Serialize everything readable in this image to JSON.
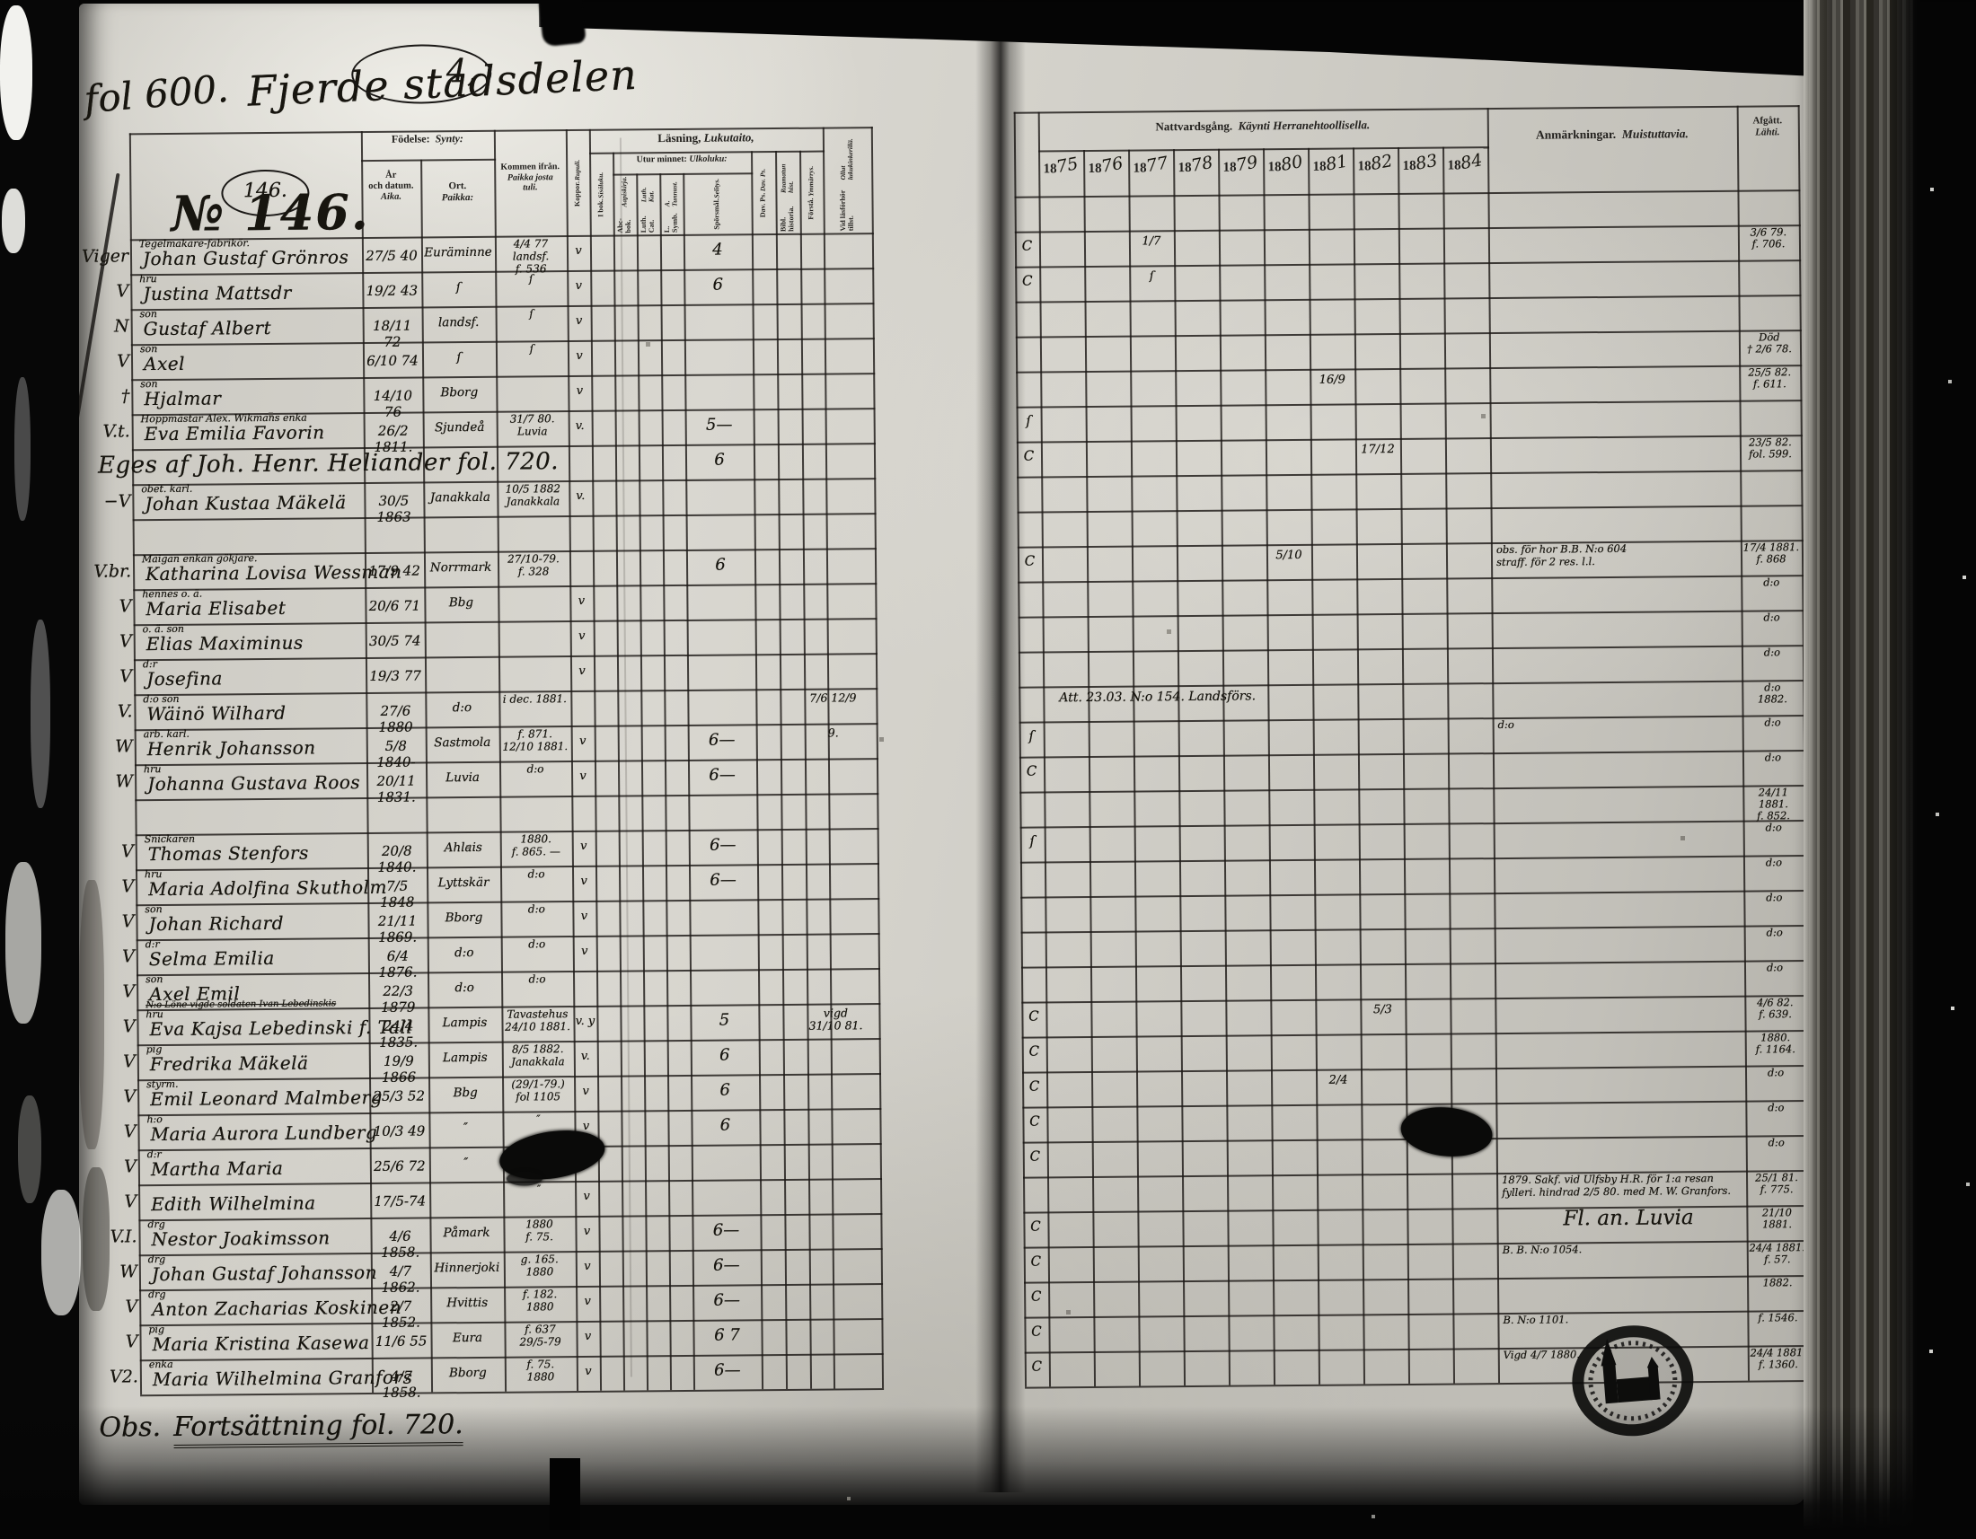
{
  "page": {
    "folio": "fol 600.",
    "district": "Fjerde stadsdelen",
    "page_mark": "4,",
    "margin_no": "146.",
    "household_no": "№ 146.",
    "cont_prefix": "Obs.",
    "continuation": "Fortsättning fol. 720.",
    "stamp_motif": "parish church seal"
  },
  "left_header": {
    "birth": {
      "sv": "Födelse:",
      "fi": "Synty:"
    },
    "birth_date": {
      "sv": "År\noch datum.",
      "fi": "Aika."
    },
    "birth_place": {
      "sv": "Ort.",
      "fi": "Paikka:"
    },
    "arrived": {
      "sv": "Kommen ifrån.",
      "fi": "Paikka josta\ntuli."
    },
    "reading": {
      "sv": "Läsning,",
      "fi": "Lukutaito,"
    },
    "memory": {
      "sv": "Utur minnet:",
      "fi": "Ulkoluku:"
    },
    "cols": [
      {
        "sv": "Koppor.",
        "fi": "Rupuli."
      },
      {
        "sv": "I bok.",
        "fi": "Sisäluku."
      },
      {
        "sv": "Abc-bok.",
        "fi": "Aapiskirja."
      },
      {
        "sv": "Luth. Cat.",
        "fi": "Luth. Kat."
      },
      {
        "sv": "L. Symb.",
        "fi": "A. Tunnust."
      },
      {
        "sv": "Spörsmål.",
        "fi": "Selitys."
      },
      {
        "sv": "Dav. Ps.",
        "fi": "Dav. Ps."
      },
      {
        "sv": "Bibl. historia.",
        "fi": "Raamatun hist."
      },
      {
        "sv": "Förstå.",
        "fi": "Ymmärrys."
      },
      {
        "sv": "Vid läsförhör tillst.",
        "fi": "Ollut lukukinkerillä."
      }
    ]
  },
  "right_header": {
    "communion": {
      "sv": "Nattvardsgång.",
      "fi": "Käynti Herranehtoollisella."
    },
    "year_prefix": "18",
    "years": [
      "75",
      "76",
      "77",
      "78",
      "79",
      "80",
      "81",
      "82",
      "83",
      "84"
    ],
    "remarks": {
      "sv": "Anmärkningar.",
      "fi": "Muistuttavia."
    },
    "departed": {
      "sv": "Afgått.",
      "fi": "Lähti."
    }
  },
  "rows": [
    {
      "m": "Viger",
      "occ": "Tegelmakare-fabrikör.",
      "name": "Johan Gustaf Grönros",
      "d": "27/5 40",
      "ort": "Euräminne",
      "kom": "4/4 77 landsf.\nf. 536",
      "kop": "v",
      "sp": "4",
      "lead": "C",
      "yr": {
        "77": "1/7"
      },
      "af": "3/6 79.\nf. 706."
    },
    {
      "m": "V",
      "occ": "hru",
      "name": "Justina Mattsdr",
      "d": "19/2 43",
      "ort": "ſ",
      "kom": "ſ",
      "kop": "v",
      "sp": "6",
      "lead": "C",
      "yr": {
        "77": "ſ"
      }
    },
    {
      "m": "N",
      "occ": "son",
      "name": "Gustaf Albert",
      "d": "18/11 72",
      "ort": "landsf.",
      "kom": "ſ",
      "kop": "v"
    },
    {
      "m": "V",
      "occ": "son",
      "name": "Axel",
      "d": "6/10 74",
      "ort": "ſ",
      "kom": "ſ",
      "kop": "v",
      "af": "Död\n† 2/6 78."
    },
    {
      "m": "†",
      "occ": "son",
      "name": "Hjalmar",
      "d": "14/10 76",
      "ort": "Bborg",
      "kop": "v",
      "yr": {
        "81": "16/9"
      },
      "af": "25/5 82.\nf. 611."
    },
    {
      "m": "V.t.",
      "occ": "Hoppmästar Alex. Wikmans enka",
      "name": "Eva Emilia Favorin",
      "d": "26/2 1811.",
      "ort": "Sjundeå",
      "kom": "31/7 80.\nLuvia",
      "kop": "v.",
      "sp": "5—",
      "lead": "ſ"
    },
    {
      "name": "Eges af Joh. Henr. Heliander   fol. 720.",
      "wide": true,
      "sp": "6",
      "lead": "C",
      "yr": {
        "82": "17/12"
      },
      "af": "23/5 82.\nfol. 599."
    },
    {
      "m": "−V",
      "occ": "obet. karl.",
      "name": "Johan Kustaa Mäkelä",
      "d": "30/5 1863",
      "ort": "Janakkala",
      "kom": "10/5 1882\nJanakkala",
      "kop": "v."
    },
    {},
    {
      "m": "V.br.",
      "occ": "Maigan enkan gökjare.",
      "name": "Katharina Lovisa Wessman",
      "d": "17/9 42",
      "ort": "Norrmark",
      "kom": "27/10-79.\nf. 328",
      "sp": "6",
      "lead": "C",
      "yr": {
        "80": "5/10"
      },
      "note": "obs. för hor B.B. N:o 604\nstraff. för 2 res. l.l.",
      "af": "17/4 1881.\nf. 868"
    },
    {
      "m": "V",
      "occ": "hennes o. ä.",
      "name": "Maria Elisabet",
      "d": "20/6 71",
      "ort": "Bbg",
      "kop": "v",
      "af": "d:o"
    },
    {
      "m": "V",
      "occ": "o. ä. son",
      "name": "Elias Maximinus",
      "d": "30/5 74",
      "kop": "v",
      "af": "d:o"
    },
    {
      "m": "V",
      "occ": "d:r",
      "name": "Josefina",
      "d": "19/3 77",
      "kop": "v",
      "af": "d:o"
    },
    {
      "m": "V.",
      "occ": "d:o son",
      "name": "Wäinö Wilhard",
      "d": "27/6 1880",
      "ort": "d:o",
      "kom": "i dec. 1881.",
      "vh": "7/6   12/9",
      "noteWide": "Att. 23.03. N:o 154.        Landsförs.",
      "af": "d:o\n1882."
    },
    {
      "m": "W",
      "occ": "arb. karl.",
      "name": "Henrik Johansson",
      "d": "5/8 1840-",
      "ort": "Sastmola",
      "kom": "f. 871.\n12/10 1881.",
      "kop": "v",
      "sp": "6—",
      "vh": "9.",
      "lead": "ſ",
      "note": "d:o",
      "af": "d:o"
    },
    {
      "m": "W",
      "occ": "hru",
      "name": "Johanna Gustava Roos",
      "d": "20/11 1831.",
      "ort": "Luvia",
      "kom": "d:o",
      "kop": "v",
      "sp": "6—",
      "lead": "C",
      "af": "d:o"
    },
    {
      "af": "24/11 1881.\nf. 852."
    },
    {
      "m": "V",
      "occ": "Snickaren",
      "name": "Thomas Stenfors",
      "d": "20/8 1840.",
      "ort": "Ahlais",
      "kom": "1880.\nf. 865. —",
      "kop": "v",
      "sp": "6—",
      "lead": "ſ",
      "af": "d:o"
    },
    {
      "m": "V",
      "occ": "hru",
      "name": "Maria Adolfina Skutholm",
      "d": "7/5 1848",
      "ort": "Lyttskär",
      "kom": "d:o",
      "kop": "v",
      "sp": "6—",
      "af": "d:o"
    },
    {
      "m": "V",
      "occ": "son",
      "name": "Johan Richard",
      "d": "21/11 1869.",
      "ort": "Bborg",
      "kom": "d:o",
      "kop": "v",
      "af": "d:o"
    },
    {
      "m": "V",
      "occ": "d:r",
      "name": "Selma Emilia",
      "d": "6/4 1876.",
      "ort": "d:o",
      "kom": "d:o",
      "kop": "v",
      "af": "d:o"
    },
    {
      "m": "V",
      "occ": "son",
      "name": "Axel Emil",
      "d": "22/3 1879",
      "ort": "d:o",
      "kom": "d:o",
      "af": "d:o"
    },
    {
      "m": "V",
      "occ": "hru",
      "struck": "N:o Löne vigde soldaten Ivan Lebedinskis",
      "name": "Eva Kajsa Lebedinski f. Tall",
      "d": "24/4 1835.",
      "ort": "Lampis",
      "kom": "Tavastehus\n24/10 1881.",
      "kop": "v. y",
      "sp": "5",
      "vh": "vigd\n31/10 81.",
      "lead": "C",
      "yr": {
        "82": "5/3"
      },
      "af": "4/6 82.\nf. 639."
    },
    {
      "m": "V",
      "occ": "pig",
      "name": "Fredrika Mäkelä",
      "d": "19/9 1866",
      "ort": "Lampis",
      "kom": "8/5 1882.\nJanakkala",
      "kop": "v.",
      "sp": "6",
      "lead": "C",
      "af": "1880.\nf. 1164."
    },
    {
      "m": "V",
      "occ": "styrm.",
      "name": "Emil Leonard Malmberg",
      "d": "25/3 52",
      "ort": "Bbg",
      "kom": "(29/1-79.)\nfol 1105",
      "kop": "v",
      "sp": "6",
      "lead": "C",
      "yr": {
        "81": "2/4"
      },
      "af": "d:o"
    },
    {
      "m": "V",
      "occ": "h:o",
      "name": "Maria Aurora Lundberg",
      "d": "10/3 49",
      "ort": "″",
      "kom": "″",
      "kop": "v",
      "sp": "6",
      "lead": "C",
      "af": "d:o"
    },
    {
      "m": "V",
      "occ": "d:r",
      "name": "Martha Maria",
      "d": "25/6 72",
      "ort": "″",
      "kom": "″",
      "kop": "v",
      "lead": "C",
      "af": "d:o"
    },
    {
      "m": "V",
      "name": "Edith Wilhelmina",
      "d": "17/5-74",
      "kom": "″",
      "kop": "v",
      "note": "1879. Sakf. vid Ulfsby H.R. för 1:a resan\nfylleri. hindrad 2/5 80. med M. W. Granfors.",
      "af": "25/1 81.\nf. 775."
    },
    {
      "m": "V.I.",
      "occ": "drg",
      "name": "Nestor Joakimsson",
      "d": "4/6 1858.",
      "ort": "Påmark",
      "kom": "1880\nf. 75.",
      "kop": "v",
      "sp": "6—",
      "lead": "C",
      "noteBig": "Fl. an. Luvia",
      "af": "21/10\n1881."
    },
    {
      "m": "W",
      "occ": "drg",
      "name": "Johan Gustaf Johansson",
      "d": "4/7 1862.",
      "ort": "Hinnerjoki",
      "kom": "g. 165.\n1880",
      "kop": "v",
      "sp": "6—",
      "lead": "C",
      "note": "B. B. N:o 1054.",
      "af": "24/4 1881.\nf. 57."
    },
    {
      "m": "V",
      "occ": "drg",
      "name": "Anton Zacharias Koskinen",
      "d": "2/7 1852.",
      "ort": "Hvittis",
      "kom": "f. 182.\n1880",
      "kop": "v",
      "sp": "6—",
      "lead": "C",
      "af": "1882."
    },
    {
      "m": "V",
      "occ": "pig",
      "name": "Maria Kristina Kasewa",
      "d": "11/6 55",
      "ort": "Eura",
      "kom": "f. 637\n29/5-79",
      "kop": "v",
      "sp": "6  7",
      "lead": "C",
      "note": "B. N:o 1101.",
      "af": "f. 1546."
    },
    {
      "m": "V2.",
      "occ": "enka",
      "name": "Maria Wilhelmina Granfors",
      "d": "4/7 1858.",
      "ort": "Bborg",
      "kom": "f. 75.\n1880",
      "kop": "v",
      "sp": "6—",
      "lead": "C",
      "note": "Vigd 4/7 1880.",
      "af": "24/4 1881.\nf. 1360."
    }
  ]
}
